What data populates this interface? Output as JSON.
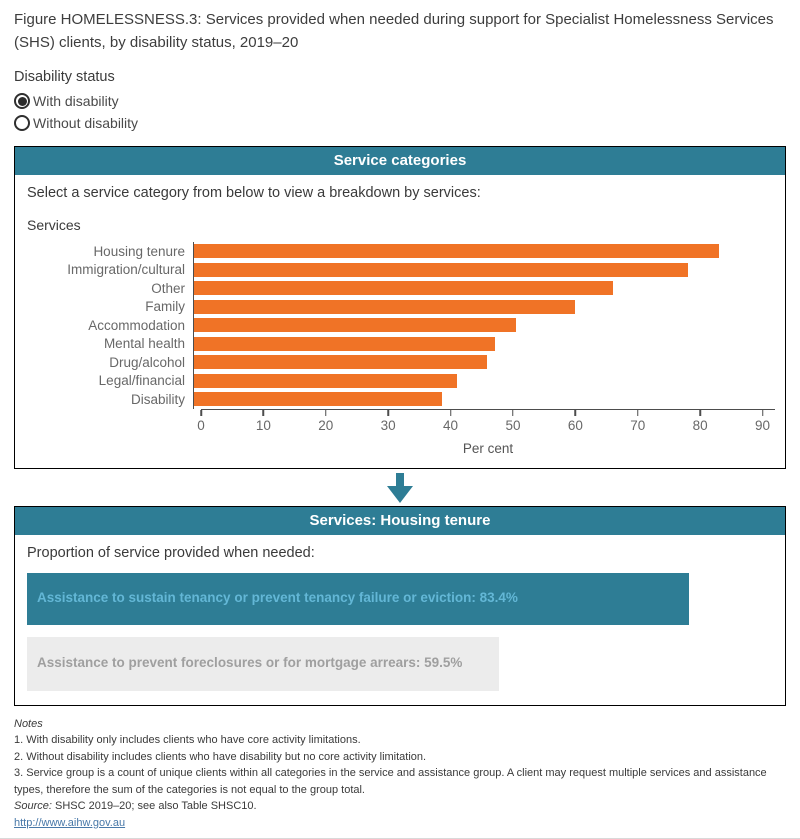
{
  "title": "Figure HOMELESSNESS.3: Services provided when needed during support for Specialist Homelessness Services (SHS) clients, by disability status, 2019–20",
  "filters": {
    "label": "Disability status",
    "options": [
      {
        "label": "With disability",
        "selected": true
      },
      {
        "label": "Without disability",
        "selected": false
      }
    ]
  },
  "panel_categories": {
    "header": "Service categories",
    "instruction": "Select a service category from below to view a breakdown by services:",
    "chart_title": "Services"
  },
  "chart_data": [
    {
      "type": "bar",
      "orientation": "horizontal",
      "title": "Services",
      "categories": [
        "Housing tenure",
        "Immigration/cultural",
        "Other",
        "Family",
        "Accommodation",
        "Mental health",
        "Drug/alcohol",
        "Legal/financial",
        "Disability"
      ],
      "values": [
        83.2,
        78.2,
        66.4,
        60.3,
        51.0,
        47.6,
        46.4,
        41.6,
        39.2
      ],
      "xlabel": "Per cent",
      "xlim": [
        0,
        92
      ],
      "xticks": [
        0,
        10,
        20,
        30,
        40,
        50,
        60,
        70,
        80,
        90
      ],
      "grid": false,
      "bar_color": "#f07326",
      "selected_category": "Housing tenure"
    },
    {
      "type": "bar",
      "orientation": "horizontal",
      "title": "Services: Housing tenure",
      "categories": [
        "Assistance to sustain tenancy or prevent tenancy failure or eviction",
        "Assistance to prevent foreclosures or for mortgage arrears"
      ],
      "values": [
        83.4,
        59.5
      ],
      "labels": [
        "Assistance to sustain tenancy or prevent tenancy failure or eviction: 83.4%",
        "Assistance to prevent foreclosures or for mortgage arrears: 59.5%"
      ],
      "xlim": [
        0,
        94
      ],
      "bar_styles": [
        {
          "bg": "#2e7d95",
          "fg": "#63b7d6"
        },
        {
          "bg": "#ececec",
          "fg": "#9f9f9f"
        }
      ]
    }
  ],
  "panel_services": {
    "header": "Services: Housing tenure",
    "instruction": "Proportion of service provided when needed:"
  },
  "notes": {
    "heading": "Notes",
    "lines": [
      "1. With disability only includes clients who have core activity limitations.",
      "2. Without disability includes clients who have disability but no core activity limitation.",
      "3. Service group is a count of unique clients within all categories in the service and assistance group. A client may request multiple services and assistance types, therefore the sum of the categories is not equal to the group total."
    ],
    "source_label": "Source:",
    "source_text": " SHSC 2019–20; see also Table SHSC10.",
    "link": "http://www.aihw.gov.au"
  },
  "colors": {
    "teal": "#2e7d95",
    "orange": "#f07326",
    "selected_bar_text": "#63b7d6",
    "unselected_bar_bg": "#ececec",
    "unselected_bar_text": "#9f9f9f",
    "link": "#4878a8"
  }
}
